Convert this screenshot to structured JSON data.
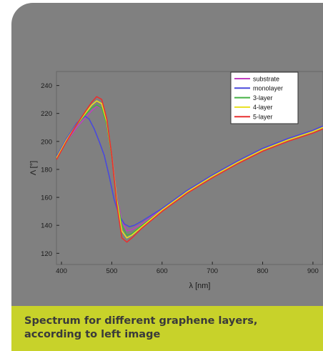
{
  "caption": {
    "line1": "Spectrum for different graphene layers,",
    "line2": "according to left image"
  },
  "colors": {
    "card_background": "#f4f4f4",
    "plot_panel": "#808080",
    "caption_bar": "#c8d22a",
    "caption_text": "#3a3a3a"
  },
  "chart_data": {
    "type": "line",
    "xlabel": "λ [nm]",
    "ylabel": "Λ [°]",
    "xlim": [
      390,
      920
    ],
    "ylim": [
      112,
      250
    ],
    "x_ticks": [
      400,
      500,
      600,
      700,
      800,
      900
    ],
    "x_tick_labels": [
      "400",
      "500",
      "600",
      "700",
      "800",
      "900"
    ],
    "y_ticks": [
      120,
      140,
      160,
      180,
      200,
      220,
      240
    ],
    "y_tick_labels": [
      "120",
      "140",
      "160",
      "180",
      "200",
      "220",
      "240"
    ],
    "grid": false,
    "legend_position": "top-right",
    "series": [
      {
        "name": "substrate",
        "color": "#c040c0",
        "points": [
          [
            390,
            189
          ],
          [
            410,
            200
          ],
          [
            430,
            210
          ],
          [
            445,
            216
          ],
          [
            460,
            222
          ],
          [
            470,
            225
          ],
          [
            480,
            224
          ],
          [
            490,
            213
          ],
          [
            500,
            190
          ],
          [
            510,
            162
          ],
          [
            520,
            143
          ],
          [
            530,
            136
          ],
          [
            540,
            137
          ],
          [
            560,
            141
          ],
          [
            600,
            152
          ],
          [
            650,
            165
          ],
          [
            700,
            176
          ],
          [
            750,
            186
          ],
          [
            800,
            195
          ],
          [
            850,
            202
          ],
          [
            900,
            208
          ],
          [
            920,
            211
          ]
        ]
      },
      {
        "name": "monolayer",
        "color": "#4a4adc",
        "points": [
          [
            390,
            189
          ],
          [
            410,
            202
          ],
          [
            430,
            213
          ],
          [
            440,
            216
          ],
          [
            447,
            218
          ],
          [
            455,
            216
          ],
          [
            465,
            209
          ],
          [
            475,
            200
          ],
          [
            485,
            190
          ],
          [
            495,
            175
          ],
          [
            505,
            158
          ],
          [
            515,
            147
          ],
          [
            525,
            141
          ],
          [
            535,
            139
          ],
          [
            545,
            140
          ],
          [
            560,
            143
          ],
          [
            600,
            152
          ],
          [
            650,
            165
          ],
          [
            700,
            176
          ],
          [
            750,
            186
          ],
          [
            800,
            195
          ],
          [
            850,
            202
          ],
          [
            900,
            208
          ],
          [
            920,
            211
          ]
        ]
      },
      {
        "name": "3-layer",
        "color": "#44b044",
        "points": [
          [
            390,
            188
          ],
          [
            410,
            201
          ],
          [
            430,
            212
          ],
          [
            445,
            218
          ],
          [
            460,
            224
          ],
          [
            470,
            226
          ],
          [
            480,
            224
          ],
          [
            490,
            212
          ],
          [
            500,
            189
          ],
          [
            510,
            160
          ],
          [
            520,
            140
          ],
          [
            530,
            133
          ],
          [
            540,
            134
          ],
          [
            560,
            140
          ],
          [
            600,
            151
          ],
          [
            650,
            164
          ],
          [
            700,
            175
          ],
          [
            750,
            185
          ],
          [
            800,
            194
          ],
          [
            850,
            201
          ],
          [
            900,
            207
          ],
          [
            920,
            210
          ]
        ]
      },
      {
        "name": "4-layer",
        "color": "#e8e020",
        "points": [
          [
            390,
            188
          ],
          [
            410,
            201
          ],
          [
            430,
            212
          ],
          [
            445,
            219
          ],
          [
            460,
            226
          ],
          [
            470,
            229
          ],
          [
            480,
            227
          ],
          [
            490,
            214
          ],
          [
            500,
            190
          ],
          [
            510,
            158
          ],
          [
            520,
            136
          ],
          [
            530,
            131
          ],
          [
            540,
            133
          ],
          [
            560,
            139
          ],
          [
            600,
            151
          ],
          [
            650,
            164
          ],
          [
            700,
            175
          ],
          [
            750,
            185
          ],
          [
            800,
            194
          ],
          [
            850,
            201
          ],
          [
            900,
            207
          ],
          [
            920,
            210
          ]
        ]
      },
      {
        "name": "5-layer",
        "color": "#e83030",
        "points": [
          [
            390,
            187
          ],
          [
            410,
            200
          ],
          [
            430,
            212
          ],
          [
            445,
            220
          ],
          [
            460,
            228
          ],
          [
            470,
            232
          ],
          [
            480,
            230
          ],
          [
            490,
            216
          ],
          [
            500,
            190
          ],
          [
            510,
            155
          ],
          [
            520,
            131
          ],
          [
            530,
            128
          ],
          [
            540,
            131
          ],
          [
            560,
            138
          ],
          [
            600,
            150
          ],
          [
            650,
            163
          ],
          [
            700,
            174
          ],
          [
            750,
            184
          ],
          [
            800,
            193
          ],
          [
            850,
            200
          ],
          [
            900,
            206
          ],
          [
            920,
            209
          ]
        ]
      }
    ]
  }
}
